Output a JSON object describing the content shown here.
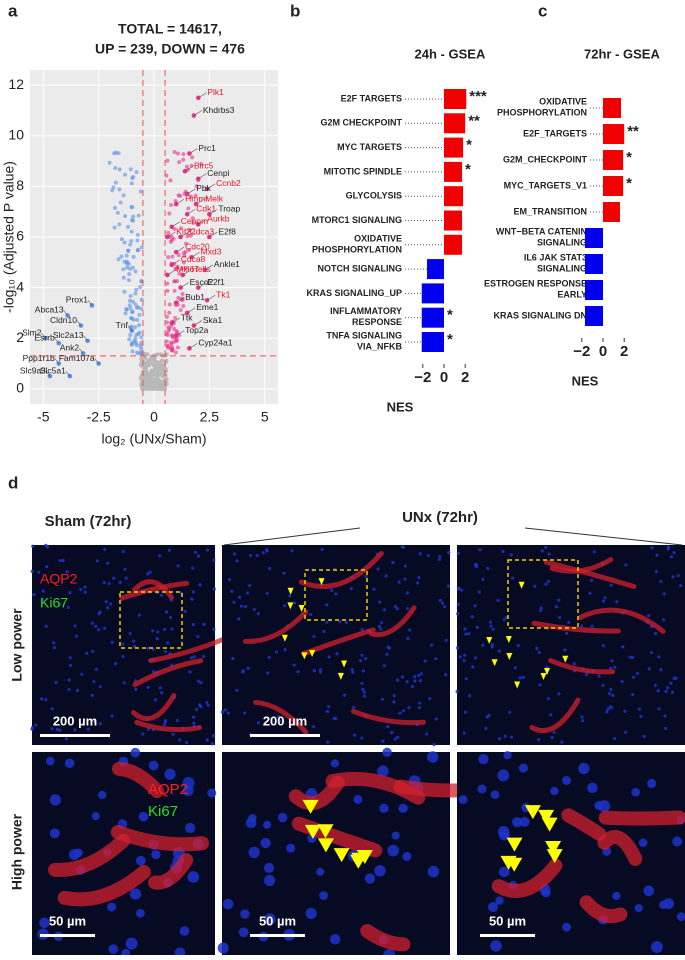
{
  "chart_data": [
    {
      "type": "scatter",
      "panel": "a",
      "title_lines": [
        "TOTAL = 14617,",
        "UP = 239, DOWN = 476"
      ],
      "xlabel": "log₂ (UNx/Sham)",
      "ylabel": "-log₁₀ (Adjusted P value)",
      "xlim": [
        -5.6,
        5.6
      ],
      "ylim": [
        -0.6,
        12.6
      ],
      "xticks": [
        -5,
        {
          "value": -2.5,
          "label": "-2.5"
        },
        0,
        {
          "value": 2.5,
          "label": "2.5"
        },
        5
      ],
      "yticks": [
        0,
        2,
        4,
        6,
        8,
        10,
        12
      ],
      "grid": true,
      "thresholds": {
        "x": [
          -0.5,
          0.5
        ],
        "y": 1.3,
        "color": "#f05050"
      },
      "up_color": "#e8338a",
      "down_color": "#5b8fe8",
      "genes": [
        {
          "label": "Plk1",
          "x": 2.0,
          "y": 11.5,
          "label_color": "#e8172a"
        },
        {
          "label": "Khdrbs3",
          "x": 1.8,
          "y": 10.8,
          "label_color": "#222222"
        },
        {
          "label": "Prc1",
          "x": 1.6,
          "y": 9.3,
          "label_color": "#222222"
        },
        {
          "label": "Birc5",
          "x": 1.4,
          "y": 8.6,
          "label_color": "#e8172a"
        },
        {
          "label": "Cenpi",
          "x": 2.0,
          "y": 8.3,
          "label_color": "#222222"
        },
        {
          "label": "Ccnb2",
          "x": 2.4,
          "y": 7.9,
          "label_color": "#e8172a"
        },
        {
          "label": "Pbk",
          "x": 1.5,
          "y": 7.7,
          "label_color": "#222222"
        },
        {
          "label": "Melk",
          "x": 1.9,
          "y": 7.3,
          "label_color": "#e8172a"
        },
        {
          "label": "Hmmr",
          "x": 1.0,
          "y": 7.3,
          "label_color": "#e8172a"
        },
        {
          "label": "Cdk1",
          "x": 1.5,
          "y": 6.9,
          "label_color": "#e8172a"
        },
        {
          "label": "Troap",
          "x": 2.5,
          "y": 6.9,
          "label_color": "#222222"
        },
        {
          "label": "Aurkb",
          "x": 2.0,
          "y": 6.5,
          "label_color": "#e8172a"
        },
        {
          "label": "Cenpm",
          "x": 0.8,
          "y": 6.4,
          "label_color": "#e8172a"
        },
        {
          "label": "Kif22",
          "x": 0.6,
          "y": 6.0,
          "label_color": "#e8172a"
        },
        {
          "label": "Cdca3",
          "x": 1.2,
          "y": 6.0,
          "label_color": "#e8172a"
        },
        {
          "label": "E2f8",
          "x": 2.5,
          "y": 6.0,
          "label_color": "#222222"
        },
        {
          "label": "Cdc20",
          "x": 1.0,
          "y": 5.4,
          "label_color": "#e8172a"
        },
        {
          "label": "Mxd3",
          "x": 1.7,
          "y": 5.2,
          "label_color": "#e8172a"
        },
        {
          "label": "Cdca8",
          "x": 0.8,
          "y": 4.9,
          "label_color": "#e8172a"
        },
        {
          "label": "Ankle1",
          "x": 2.3,
          "y": 4.7,
          "label_color": "#222222"
        },
        {
          "label": "Mki67",
          "x": 0.6,
          "y": 4.5,
          "label_color": "#e8172a"
        },
        {
          "label": "Hells",
          "x": 1.3,
          "y": 4.5,
          "label_color": "#e8172a"
        },
        {
          "label": "Esco2",
          "x": 1.2,
          "y": 4.0,
          "label_color": "#222222"
        },
        {
          "label": "E2f1",
          "x": 2.0,
          "y": 4.0,
          "label_color": "#222222"
        },
        {
          "label": "Tk1",
          "x": 2.4,
          "y": 3.5,
          "label_color": "#e8172a"
        },
        {
          "label": "Bub1",
          "x": 1.0,
          "y": 3.4,
          "label_color": "#222222"
        },
        {
          "label": "Eme1",
          "x": 1.5,
          "y": 3.0,
          "label_color": "#222222"
        },
        {
          "label": "Ttk",
          "x": 0.8,
          "y": 2.6,
          "label_color": "#222222"
        },
        {
          "label": "Ska1",
          "x": 1.8,
          "y": 2.5,
          "label_color": "#222222"
        },
        {
          "label": "Top2a",
          "x": 1.0,
          "y": 2.1,
          "label_color": "#222222"
        },
        {
          "label": "Cyp24a1",
          "x": 1.6,
          "y": 1.6,
          "label_color": "#222222"
        },
        {
          "label": "Prox1",
          "x": -2.8,
          "y": 3.3,
          "label_color": "#222222"
        },
        {
          "label": "Abca13",
          "x": -3.9,
          "y": 2.9,
          "label_color": "#222222"
        },
        {
          "label": "Cldn10",
          "x": -3.3,
          "y": 2.5,
          "label_color": "#222222"
        },
        {
          "label": "Slm2",
          "x": -4.9,
          "y": 2.0,
          "label_color": "#222222"
        },
        {
          "label": "Esrrb",
          "x": -4.3,
          "y": 1.8,
          "label_color": "#222222"
        },
        {
          "label": "Slc2a13",
          "x": -3.0,
          "y": 1.9,
          "label_color": "#222222"
        },
        {
          "label": "Tnf",
          "x": -1.0,
          "y": 2.3,
          "label_color": "#222222"
        },
        {
          "label": "Ank2",
          "x": -3.2,
          "y": 1.4,
          "label_color": "#222222"
        },
        {
          "label": "Ppp1r1b",
          "x": -4.3,
          "y": 1.0,
          "label_color": "#222222"
        },
        {
          "label": "Fam107a",
          "x": -2.5,
          "y": 1.0,
          "label_color": "#222222"
        },
        {
          "label": "Slc9a3",
          "x": -4.7,
          "y": 0.5,
          "label_color": "#222222"
        },
        {
          "label": "Slc5a1",
          "x": -3.8,
          "y": 0.5,
          "label_color": "#222222"
        }
      ]
    },
    {
      "type": "barh",
      "panel": "b",
      "title": "24h - GSEA",
      "xlabel": "NES",
      "xlim": [
        -3.2,
        3.2
      ],
      "xticks": [
        {
          "value": -2,
          "label": "−2"
        },
        0,
        2
      ],
      "pos_color": "#f00000",
      "neg_color": "#0000ee",
      "categories": [
        "E2F TARGETS",
        "G2M CHECKPOINT",
        "MYC TARGETS",
        "MITOTIC SPINDLE",
        "GLYCOLYSIS",
        "MTORC1 SIGNALING",
        "OXIDATIVE\nPHOSPHORYLATION",
        "NOTCH SIGNALING",
        "KRAS SIGNALING_UP",
        "INFLAMMATORY\nRESPONSE",
        "TNFA SIGNALING\nVIA_NFKB"
      ],
      "values": [
        2.1,
        2.0,
        1.8,
        1.7,
        1.8,
        1.7,
        1.7,
        -1.6,
        -2.1,
        -2.1,
        -2.1
      ],
      "annotations": [
        "***",
        "**",
        "*",
        "*",
        null,
        null,
        null,
        null,
        null,
        "*",
        "*"
      ]
    },
    {
      "type": "barh",
      "panel": "c",
      "title": "72hr - GSEA",
      "xlabel": "NES",
      "xlim": [
        -3.2,
        3.2
      ],
      "xticks": [
        {
          "value": -2,
          "label": "−2"
        },
        0,
        2
      ],
      "pos_color": "#f00000",
      "neg_color": "#0000ee",
      "categories": [
        "OXIDATIVE\nPHOSPHORYLATION",
        "E2F_TARGETS",
        "G2M_CHECKPOINT",
        "MYC_TARGETS_V1",
        "EM_TRANSITION",
        "WNT−BETA CATENIN\nSIGNALING",
        "IL6 JAK STAT3\nSIGNALING",
        "ESTROGEN RESPONSE\nEARLY",
        "KRAS SIGNALING DN"
      ],
      "values": [
        1.7,
        2.0,
        1.9,
        1.9,
        1.6,
        -1.7,
        -1.7,
        -1.7,
        -1.7
      ],
      "annotations": [
        null,
        "**",
        "*",
        "*",
        null,
        null,
        null,
        null,
        null
      ]
    }
  ],
  "figure": {
    "panel": "d",
    "sham_title": "Sham (72hr)",
    "unx_title": "UNx (72hr)",
    "row_labels": [
      "Low power",
      "High power"
    ],
    "stain_labels": [
      "AQP2",
      "Ki67"
    ],
    "scale_bars": [
      "200 µm",
      "200 µm",
      "50 µm",
      "50 µm",
      "50 µm"
    ]
  }
}
